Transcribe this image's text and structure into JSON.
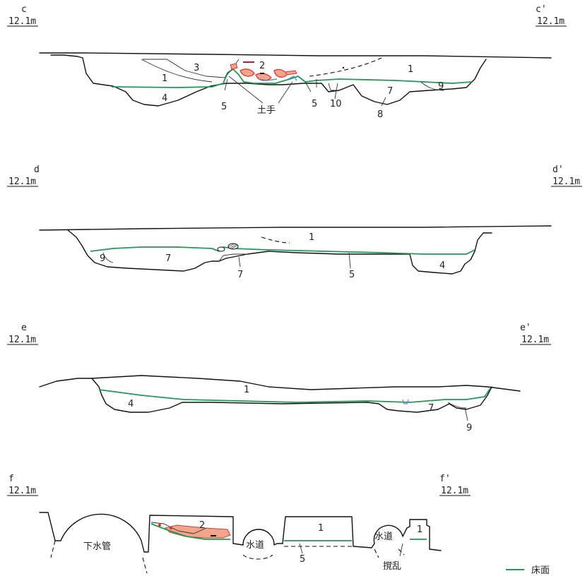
{
  "colors": {
    "floor_line": "#1e9a55",
    "burnt_red": "#e03030",
    "burnt_fill": "#f2a58a",
    "ash_blue": "#4a90d9",
    "line": "#111111"
  },
  "sections": {
    "c": {
      "left_label": "c",
      "right_label": "c'",
      "elev_left": "12.1m",
      "elev_right": "12.1m",
      "layers": [
        "1",
        "2",
        "3",
        "4",
        "5",
        "5",
        "10",
        "7",
        "8",
        "9",
        "1"
      ],
      "feature": "土手"
    },
    "d": {
      "left_label": "d",
      "right_label": "d'",
      "elev_left": "12.1m",
      "elev_right": "12.1m",
      "layers": [
        "1",
        "9",
        "7",
        "7",
        "5",
        "4"
      ]
    },
    "e": {
      "left_label": "e",
      "right_label": "e'",
      "elev_left": "12.1m",
      "elev_right": "12.1m",
      "layers": [
        "1",
        "4",
        "7",
        "9"
      ]
    },
    "f": {
      "left_label": "f",
      "right_label": "f'",
      "elev_left": "12.1m",
      "elev_right": "12.1m",
      "layers": [
        "2",
        "1",
        "1",
        "5"
      ],
      "sewer": "下水管",
      "water1": "水道",
      "water2": "水道",
      "disturb": "撹乱"
    }
  },
  "legend": {
    "label": "床面"
  }
}
